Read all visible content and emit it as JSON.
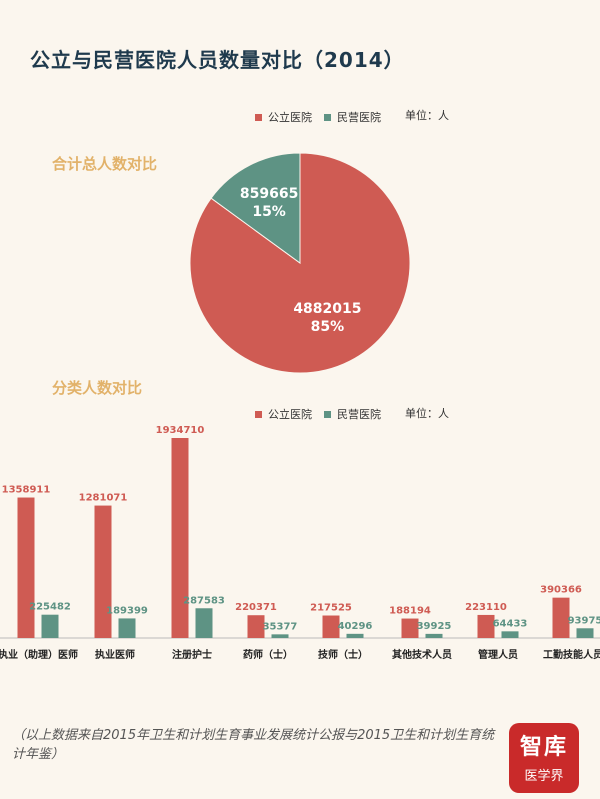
{
  "title": "公立与民营医院人员数量对比（2014）",
  "legend": {
    "public": "公立医院",
    "private": "民营医院"
  },
  "unit": "单位：人",
  "pie_section_title": "合计总人数对比",
  "bar_section_title": "分类人数对比",
  "footnote": "（以上数据来自2015年卫生和计划生育事业发展统计公报与2015卫生和计划生育统计年鉴）",
  "logo": {
    "line1": "智库",
    "line2": "医学界"
  },
  "colors": {
    "public": "#cf5b53",
    "private": "#5e9384"
  },
  "chart_data": [
    {
      "type": "pie",
      "title": "合计总人数对比",
      "slices": [
        {
          "name": "公立医院",
          "value": 4882015,
          "percent": "85%"
        },
        {
          "name": "民营医院",
          "value": 859665,
          "percent": "15%"
        }
      ]
    },
    {
      "type": "bar",
      "title": "分类人数对比",
      "categories": [
        "执业（助理）医师",
        "执业医师",
        "注册护士",
        "药师（士）",
        "技师（士）",
        "其他技术人员",
        "管理人员",
        "工勤技能人员"
      ],
      "series": [
        {
          "name": "公立医院",
          "values": [
            1358911,
            1281071,
            1934710,
            220371,
            217525,
            188194,
            223110,
            390366
          ]
        },
        {
          "name": "民营医院",
          "values": [
            225482,
            189399,
            287583,
            35377,
            40296,
            39925,
            64433,
            93975
          ]
        }
      ]
    }
  ]
}
